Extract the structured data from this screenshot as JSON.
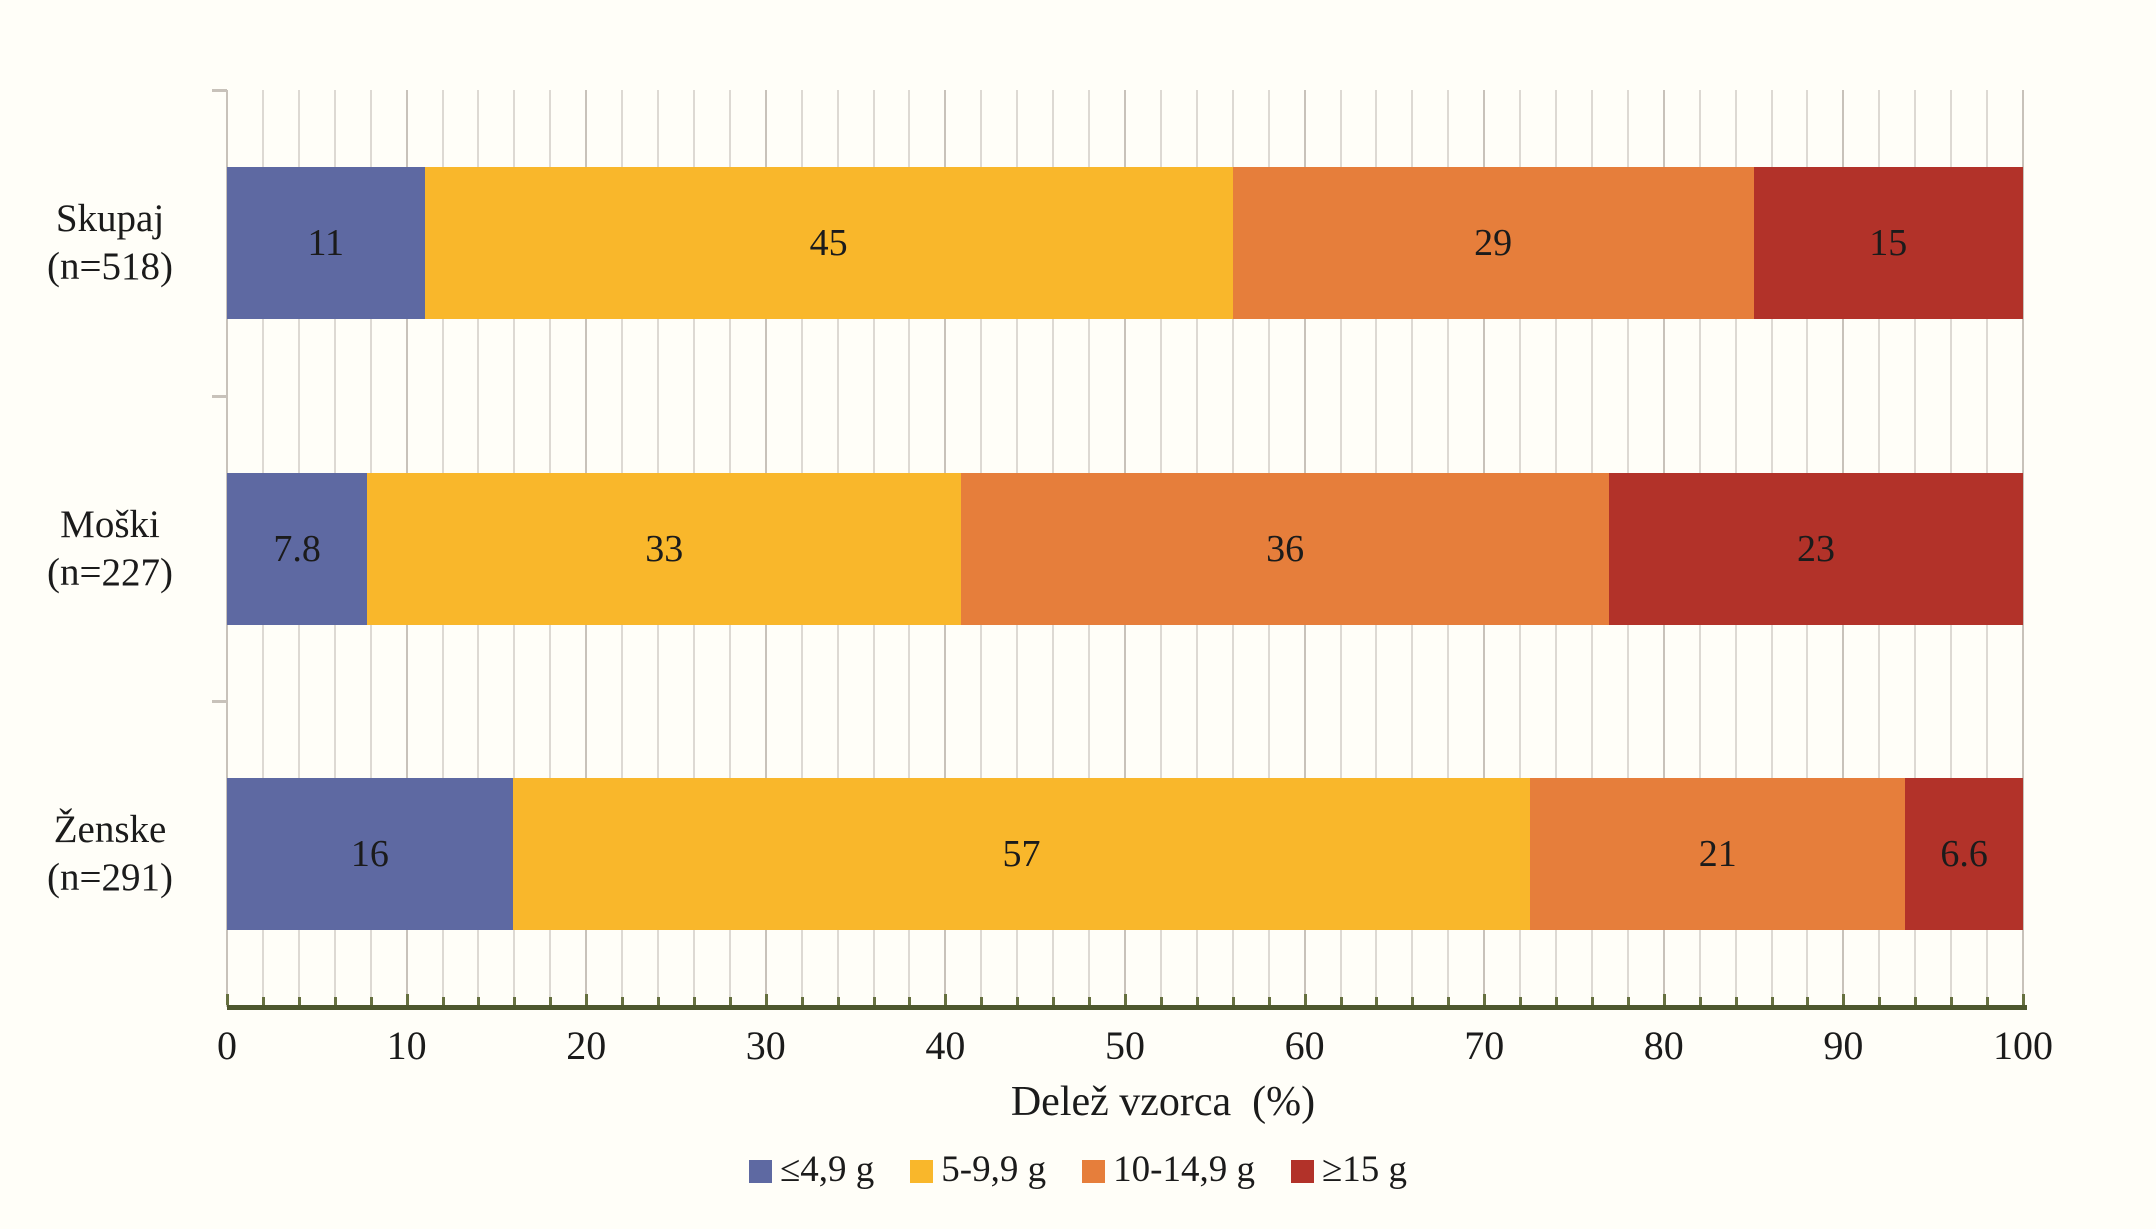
{
  "chart_data": {
    "type": "bar",
    "orientation": "horizontal",
    "stacked": true,
    "title": "",
    "xlabel": "Delež vzorca  (%)",
    "ylabel": "",
    "xlim": [
      0,
      100
    ],
    "x_major_ticks": [
      "0",
      "10",
      "20",
      "30",
      "40",
      "50",
      "60",
      "70",
      "80",
      "90",
      "100"
    ],
    "x_minor_tick_step": 2,
    "grid": "vertical, minor every 2%, major every 10%",
    "legend_position": "bottom-center",
    "categories": [
      "Skupaj",
      "Moški",
      "Ženske"
    ],
    "category_sublabels": [
      "(n=518)",
      "(n=227)",
      "(n=291)"
    ],
    "series": [
      {
        "name": "≤4,9 g",
        "color": "#5e69a2",
        "values": [
          11,
          7.8,
          16
        ]
      },
      {
        "name": "5-9,9 g",
        "color": "#f9b72b",
        "values": [
          45,
          33,
          57
        ]
      },
      {
        "name": "10-14,9 g",
        "color": "#e67e3b",
        "values": [
          29,
          36,
          21
        ]
      },
      {
        "name": "≥15 g",
        "color": "#b23229",
        "values": [
          15,
          23,
          6.6
        ]
      }
    ],
    "value_labels": [
      [
        "11",
        "45",
        "29",
        "15"
      ],
      [
        "7.8",
        "33",
        "36",
        "23"
      ],
      [
        "16",
        "57",
        "21",
        "6.6"
      ]
    ]
  },
  "colors": {
    "background": "#fffef8",
    "axis_line": "#4d572e",
    "tick_mark": "#667040",
    "gridline_minor": "#ddd9d3",
    "gridline_major": "#c8c2ba",
    "text": "#1b1b1b"
  }
}
